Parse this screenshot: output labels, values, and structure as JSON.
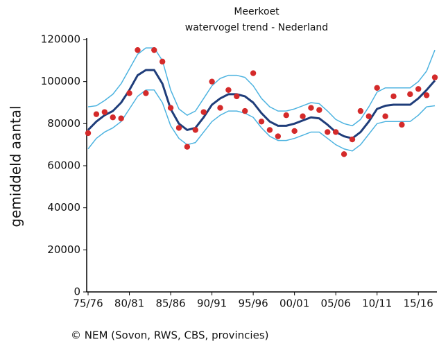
{
  "chart_data": {
    "type": "line",
    "title": "Meerkoet",
    "subtitle": "watervogel trend - Nederland",
    "y_label": "gemiddeld aantal",
    "source": "© NEM (Sovon, RWS, CBS, provincies)",
    "x": [
      1975,
      1976,
      1977,
      1978,
      1979,
      1980,
      1981,
      1982,
      1983,
      1984,
      1985,
      1986,
      1987,
      1988,
      1989,
      1990,
      1991,
      1992,
      1993,
      1994,
      1995,
      1996,
      1997,
      1998,
      1999,
      2000,
      2001,
      2002,
      2003,
      2004,
      2005,
      2006,
      2007,
      2008,
      2009,
      2010,
      2011,
      2012,
      2013,
      2014,
      2015,
      2016,
      2017
    ],
    "xlim": [
      1974.83,
      2017.25
    ],
    "xticks": [
      {
        "value": 1975,
        "label": "75/76"
      },
      {
        "value": 1980,
        "label": "80/81"
      },
      {
        "value": 1985,
        "label": "85/86"
      },
      {
        "value": 1990,
        "label": "90/91"
      },
      {
        "value": 1995,
        "label": "95/96"
      },
      {
        "value": 2000,
        "label": "00/01"
      },
      {
        "value": 2005,
        "label": "05/06"
      },
      {
        "value": 2010,
        "label": "10/11"
      },
      {
        "value": 2015,
        "label": "15/16"
      }
    ],
    "ylim": [
      0,
      120000
    ],
    "yticks": [
      0,
      20000,
      40000,
      60000,
      80000,
      100000,
      120000
    ],
    "series": [
      {
        "kind": "line",
        "color": "#4db3e0",
        "width": 1.5,
        "values": [
          88000,
          88500,
          91000,
          94000,
          99000,
          106000,
          113000,
          116000,
          116000,
          110000,
          96000,
          87000,
          84000,
          86000,
          92000,
          98000,
          101500,
          103000,
          103000,
          102000,
          98000,
          92000,
          88000,
          86000,
          86000,
          87000,
          88500,
          90000,
          89500,
          86000,
          82000,
          80000,
          79000,
          82000,
          88000,
          95000,
          97000,
          97000,
          97000,
          97000,
          100000,
          105000,
          115000
        ]
      },
      {
        "kind": "line",
        "color": "#4db3e0",
        "width": 1.5,
        "values": [
          68000,
          73000,
          76000,
          78000,
          81000,
          87000,
          93000,
          96000,
          96000,
          90000,
          79000,
          73000,
          70000,
          71000,
          76000,
          81000,
          84000,
          86000,
          86000,
          85000,
          83000,
          78000,
          74000,
          72000,
          72000,
          73000,
          74500,
          76000,
          76000,
          73000,
          70000,
          68000,
          67000,
          70000,
          75000,
          80000,
          81000,
          81000,
          81000,
          81000,
          84000,
          88000,
          88500
        ]
      },
      {
        "kind": "line",
        "color": "#1f3d7a",
        "width": 3,
        "values": [
          77000,
          81000,
          84000,
          86000,
          90000,
          96000,
          103000,
          105500,
          105500,
          99000,
          87000,
          80000,
          77000,
          78000,
          83000,
          89000,
          92000,
          94000,
          94000,
          93000,
          90000,
          85000,
          81000,
          79000,
          79000,
          80000,
          81500,
          83000,
          82500,
          79500,
          76000,
          74000,
          73000,
          76000,
          81000,
          87000,
          88500,
          89000,
          89000,
          89000,
          92000,
          96000,
          100500
        ]
      },
      {
        "kind": "scatter",
        "color": "#d42a2a",
        "values": [
          75500,
          84500,
          85500,
          83000,
          82500,
          94500,
          115000,
          94500,
          115000,
          109500,
          87500,
          78000,
          69000,
          77000,
          85500,
          100000,
          87500,
          96000,
          93000,
          86000,
          104000,
          81000,
          77000,
          74000,
          84000,
          76500,
          83500,
          87500,
          86500,
          76000,
          76000,
          65500,
          72500,
          86000,
          83500,
          97000,
          83500,
          93000,
          79500,
          94000,
          96500,
          93500,
          102000
        ]
      }
    ]
  }
}
